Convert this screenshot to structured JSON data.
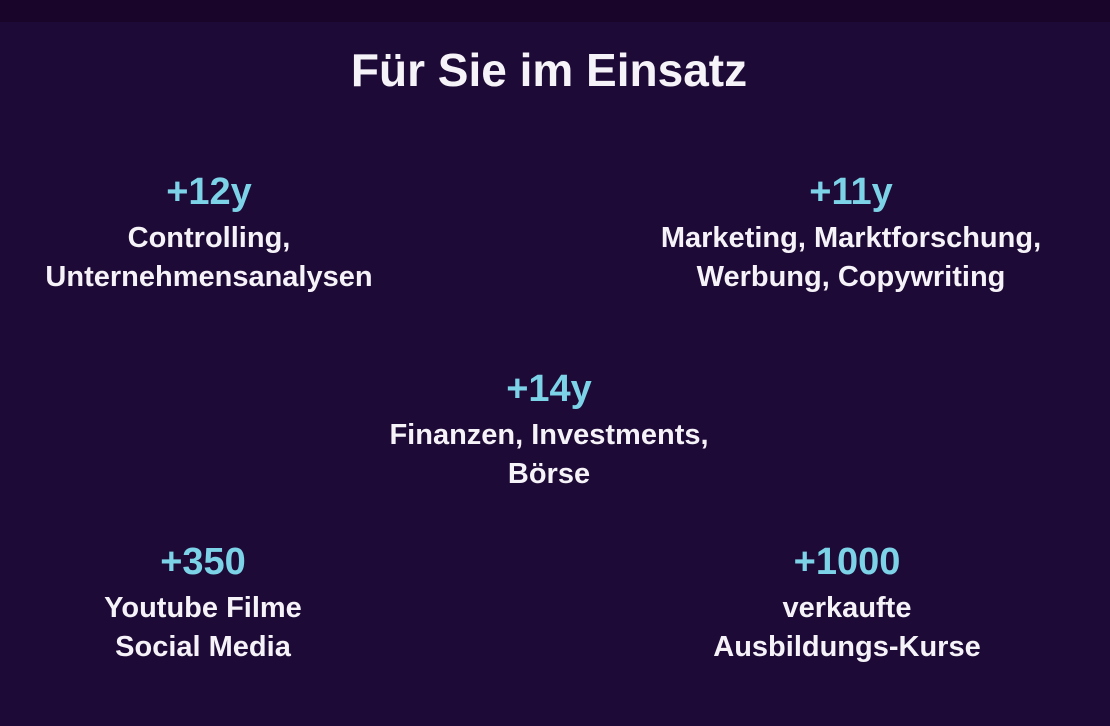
{
  "slide": {
    "title": "Für Sie im Einsatz",
    "stats": [
      {
        "value": "+12y",
        "lines": [
          "Controlling,",
          "Unternehmensanalysen"
        ]
      },
      {
        "value": "+11y",
        "lines": [
          "Marketing, Marktforschung,",
          "Werbung, Copywriting"
        ]
      },
      {
        "value": "+14y",
        "lines": [
          "Finanzen, Investments,",
          "Börse"
        ]
      },
      {
        "value": "+350",
        "lines": [
          "Youtube Filme",
          "Social Media"
        ]
      },
      {
        "value": "+1000",
        "lines": [
          "verkaufte",
          "Ausbildungs-Kurse"
        ]
      }
    ],
    "colors": {
      "background": "#1e0a36",
      "top_bar": "#180529",
      "accent": "#7cd2e6",
      "text": "#f5f2f8"
    }
  }
}
